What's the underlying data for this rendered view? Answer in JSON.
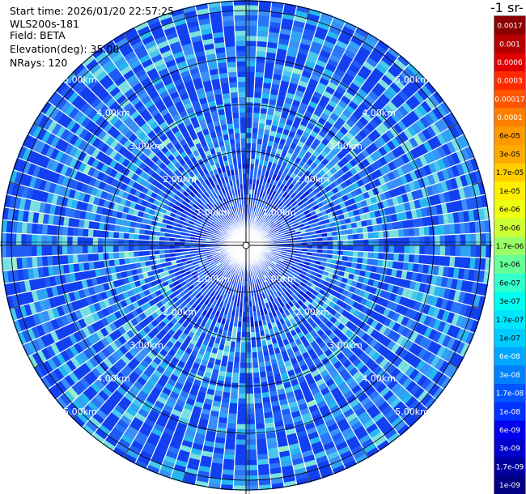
{
  "info": {
    "start_time": "Start time: 2026/01/20 22:57:25",
    "instrument": "WLS200s-181",
    "field": "Field: BETA",
    "elevation": "Elevation(deg): 35.00",
    "nrays": "NRays: 120"
  },
  "chart_data": {
    "type": "heatmap",
    "projection": "polar-ppi",
    "field": "BETA",
    "elevation_deg": 35.0,
    "n_rays": 120,
    "range_rings_km": [
      1.0,
      2.0,
      3.0,
      4.0,
      5.0
    ],
    "ring_labels": [
      "1.00km",
      "2.00km",
      "3.00km",
      "4.00km",
      "5.00km"
    ],
    "colorbar": {
      "title": "-1 sr-",
      "tick_labels": [
        "0.0017",
        "0.001",
        "0.0006",
        "0.0003",
        "0.00017",
        "0.0001",
        "6e-05",
        "3e-05",
        "1.7e-05",
        "1e-05",
        "6e-06",
        "3e-06",
        "1.7e-06",
        "1e-06",
        "6e-07",
        "3e-07",
        "1.7e-07",
        "1e-07",
        "6e-08",
        "3e-08",
        "1.7e-08",
        "1e-08",
        "6e-09",
        "3e-09",
        "1.7e-09",
        "1e-09"
      ],
      "colors": [
        "#8b0000",
        "#b40000",
        "#e00000",
        "#ff2a00",
        "#ff5500",
        "#ff8000",
        "#ff9900",
        "#ffaa00",
        "#ffcc00",
        "#ffee00",
        "#eeff10",
        "#ccff33",
        "#99ff66",
        "#66ff99",
        "#33ffcc",
        "#00ffee",
        "#00e6ff",
        "#00ccff",
        "#00a6ff",
        "#0080ff",
        "#0055ff",
        "#0033ff",
        "#0000ee",
        "#0000cc",
        "#0000a0",
        "#000080"
      ]
    },
    "palette": [
      "#0a1ed8",
      "#1240f0",
      "#1e5cf5",
      "#2a76f8",
      "#3a8ff8",
      "#30a4f5",
      "#25b8f0",
      "#48c8ee",
      "#7ae0e0",
      "#9af0c8"
    ]
  }
}
